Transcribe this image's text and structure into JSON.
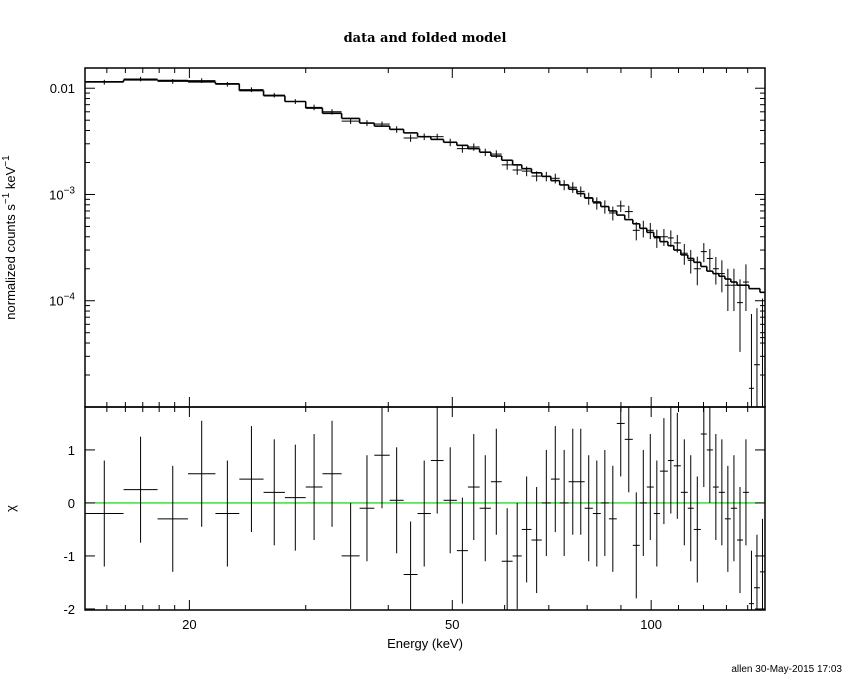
{
  "chart_data": {
    "type": "spectrum",
    "title": "data and folded model",
    "xlabel": "Energy (keV)",
    "xlog": true,
    "xlim": [
      13.9,
      148.7
    ],
    "xticks": [
      20,
      50,
      100
    ],
    "xminorticks": [
      15,
      16,
      17,
      18,
      19,
      30,
      40,
      60,
      70,
      80,
      90,
      110,
      120,
      130,
      140
    ],
    "bins": [
      13.9,
      15.9,
      17.9,
      19.9,
      21.9,
      23.8,
      25.9,
      27.9,
      30.0,
      31.8,
      34.0,
      36.2,
      38.1,
      40.2,
      42.2,
      44.3,
      46.4,
      48.5,
      50.8,
      52.8,
      55.0,
      57.2,
      59.4,
      61.7,
      63.7,
      65.9,
      68.3,
      70.5,
      72.7,
      75.0,
      77.2,
      79.3,
      81.6,
      83.9,
      86.3,
      88.7,
      91.2,
      93.8,
      96.1,
      98.5,
      100.9,
      103.1,
      106.0,
      108.2,
      110.9,
      113.6,
      116.0,
      118.9,
      121.4,
      124.0,
      126.6,
      129.3,
      132.0,
      134.9,
      137.7,
      140.6,
      143.1,
      146.1,
      148.7
    ],
    "panels": [
      {
        "ylog": true,
        "ylim": [
          1e-05,
          0.0155
        ],
        "yticks": [
          0.01,
          {
            "value": 0.001,
            "label": "10",
            "superscript": "−3"
          },
          {
            "value": 0.0001,
            "label": "10",
            "superscript": "−4"
          }
        ],
        "yminorticks": [
          2e-05,
          3e-05,
          4e-05,
          5e-05,
          6e-05,
          7e-05,
          8e-05,
          9e-05,
          0.0002,
          0.0003,
          0.0004,
          0.0005,
          0.0006,
          0.0007,
          0.0008,
          0.0009,
          0.002,
          0.003,
          0.004,
          0.005,
          0.006,
          0.007,
          0.008,
          0.009
        ],
        "ylabel": [
          "normalized counts s",
          "−1",
          " keV",
          "−1"
        ],
        "data": {
          "color": "#000000",
          "values": [
            0.0114,
            0.0122,
            0.0116,
            0.0118,
            0.0109,
            0.0097,
            0.0086,
            0.0075,
            0.0066,
            0.006,
            0.0049,
            0.0047,
            0.0046,
            0.0041,
            0.0034,
            0.0035,
            0.0035,
            0.0031,
            0.0027,
            0.0028,
            0.0025,
            0.0024,
            0.0019,
            0.0017,
            0.00166,
            0.00149,
            0.00148,
            0.00142,
            0.00123,
            0.00117,
            0.00107,
            0.00092,
            0.00083,
            0.00077,
            0.00067,
            0.00078,
            0.00069,
            0.00046,
            0.00048,
            0.00046,
            0.00039,
            0.0004,
            0.00039,
            0.00035,
            0.00028,
            0.00024,
            0.0002,
            0.00029,
            0.00025,
            0.0002,
            0.00018,
            0.00014,
            0.00014,
            9.6e-05,
            0.00015,
            1.5e-05,
            2.5e-05,
            4.5e-05
          ],
          "errors": [
            0.0006,
            0.0006,
            0.0006,
            0.0006,
            0.00055,
            0.0005,
            0.00043,
            0.0004,
            0.0004,
            0.00035,
            0.0003,
            0.0003,
            0.00026,
            0.00029,
            0.00027,
            0.00025,
            0.00023,
            0.00025,
            0.00023,
            0.00022,
            0.0002,
            0.0002,
            0.00019,
            0.00017,
            0.000175,
            0.00016,
            0.00015,
            0.00015,
            0.000135,
            0.000135,
            0.00012,
            0.00012,
            0.00011,
            0.00011,
            0.0001,
            9.6e-05,
            9.3e-05,
            9e-05,
            8.6e-05,
            8e-05,
            7.6e-05,
            7.2e-05,
            6.9e-05,
            6.6e-05,
            6.2e-05,
            6e-05,
            6e-05,
            5.9e-05,
            5.7e-05,
            5.8e-05,
            6e-05,
            6e-05,
            6e-05,
            6.3e-05,
            7e-05,
            6e-05,
            6e-05,
            6e-05
          ]
        },
        "model": {
          "color": "#000000",
          "values": [
            0.0115,
            0.012,
            0.0118,
            0.0115,
            0.011,
            0.0095,
            0.0085,
            0.0075,
            0.0065,
            0.0058,
            0.0052,
            0.0047,
            0.0044,
            0.0041,
            0.0038,
            0.0035,
            0.0033,
            0.0031,
            0.0029,
            0.0027,
            0.0025,
            0.0023,
            0.0021,
            0.0019,
            0.00175,
            0.0016,
            0.00148,
            0.00135,
            0.00123,
            0.00112,
            0.00102,
            0.00093,
            0.00085,
            0.00077,
            0.0007,
            0.00064,
            0.00058,
            0.00053,
            0.00048,
            0.00044,
            0.0004,
            0.00036,
            0.00033,
            0.0003,
            0.00027,
            0.00025,
            0.00023,
            0.00021,
            0.00019,
            0.00018,
            0.00017,
            0.00016,
            0.00015,
            0.00014,
            0.00014,
            0.00013,
            0.00013,
            0.00012
          ]
        }
      },
      {
        "ylog": false,
        "ylim": [
          -2.02,
          1.81
        ],
        "yticks": [
          -2,
          -1,
          0,
          1
        ],
        "ylabel": [
          "χ"
        ],
        "reference_line": {
          "value": 0,
          "color": "#00cc00"
        },
        "data": {
          "color": "#000000",
          "values": [
            -0.2,
            0.25,
            -0.3,
            0.55,
            -0.2,
            0.45,
            0.2,
            0.1,
            0.3,
            0.55,
            -1.0,
            -0.1,
            0.9,
            0.05,
            -1.35,
            -0.2,
            0.8,
            0.05,
            -0.9,
            0.3,
            -0.1,
            0.4,
            -1.1,
            -1.0,
            -0.5,
            -0.7,
            0,
            0.45,
            0,
            0.4,
            0.4,
            -0.1,
            -0.2,
            0,
            -0.3,
            1.5,
            1.2,
            -0.8,
            0,
            0.3,
            -0.2,
            0.6,
            0.8,
            0.7,
            0.2,
            -0.1,
            -0.5,
            1.3,
            1.0,
            0.3,
            0.2,
            -0.3,
            -0.1,
            -0.7,
            0.2,
            -1.9,
            -1.6,
            -1.3
          ],
          "errors": [
            1,
            1,
            1,
            1,
            1,
            1,
            1,
            1,
            1,
            1,
            1,
            1,
            1,
            1,
            1,
            1,
            1,
            1,
            1,
            1,
            1,
            1,
            1,
            1,
            1,
            1,
            1,
            1,
            1,
            1,
            1,
            1,
            1,
            1,
            1,
            1,
            1,
            1,
            1,
            1,
            1,
            1,
            1,
            1,
            1,
            1,
            1,
            1,
            1,
            1,
            1,
            1,
            1,
            1,
            1,
            1,
            1,
            1
          ]
        }
      }
    ],
    "footer": "allen 30-May-2015 17:03"
  }
}
